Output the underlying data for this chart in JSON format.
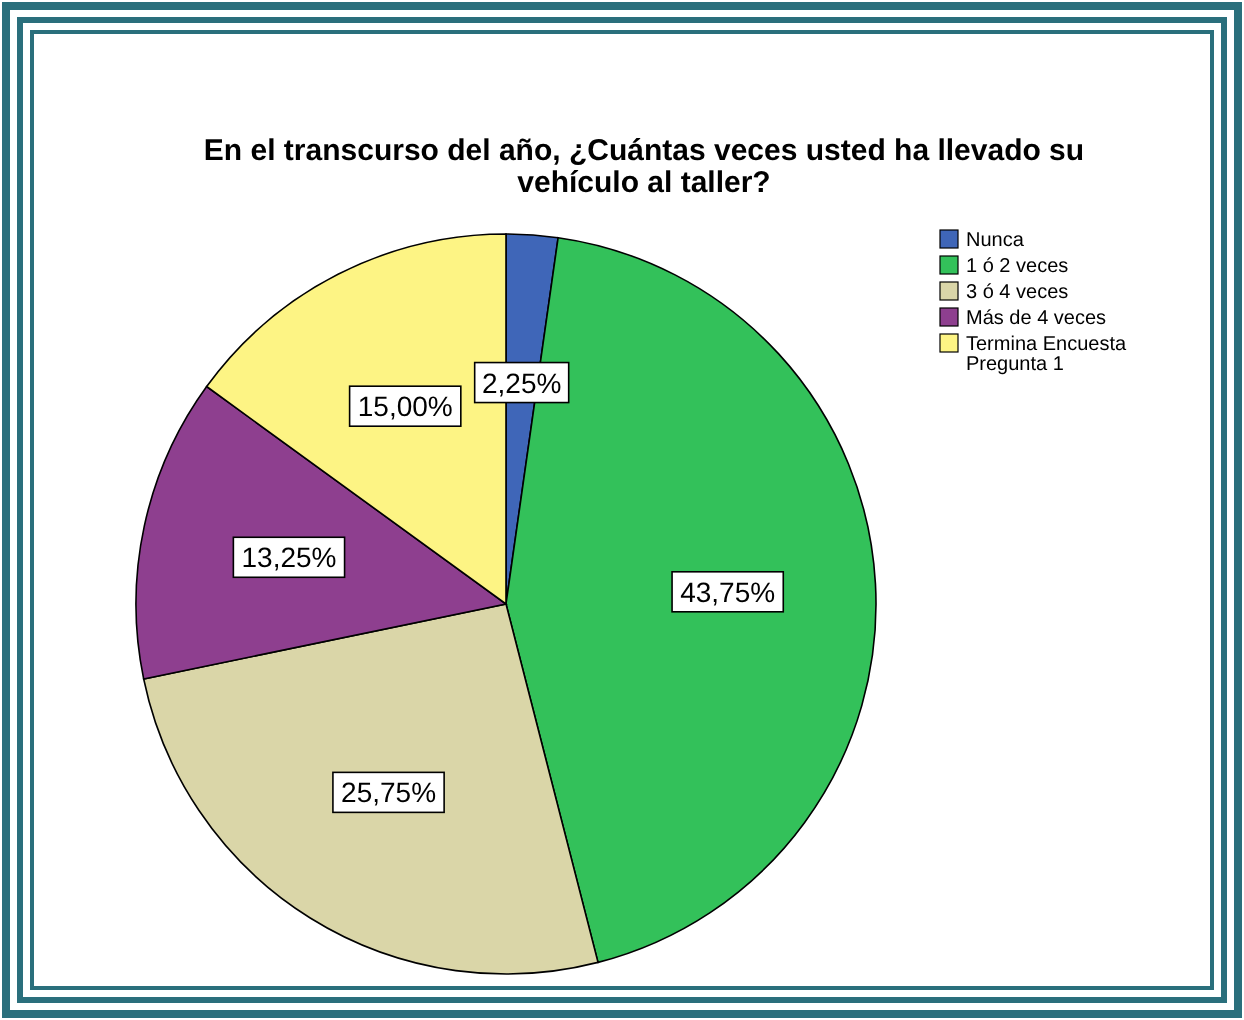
{
  "chart_data": {
    "type": "pie",
    "title": "En el transcurso del año, ¿Cuántas veces usted ha llevado su vehículo al taller?",
    "categories": [
      "Nunca",
      "1 ó 2 veces",
      "3 ó 4 veces",
      "Más de 4 veces",
      "Termina Encuesta Pregunta 1"
    ],
    "values": [
      2.25,
      43.75,
      25.75,
      13.25,
      15.0
    ],
    "value_labels": [
      "2,25%",
      "43,75%",
      "25,75%",
      "13,25%",
      "15,00%"
    ],
    "colors": [
      "#3f66b8",
      "#33c15a",
      "#dad6a8",
      "#8e3f8f",
      "#fdf484"
    ],
    "legend": "top right"
  }
}
